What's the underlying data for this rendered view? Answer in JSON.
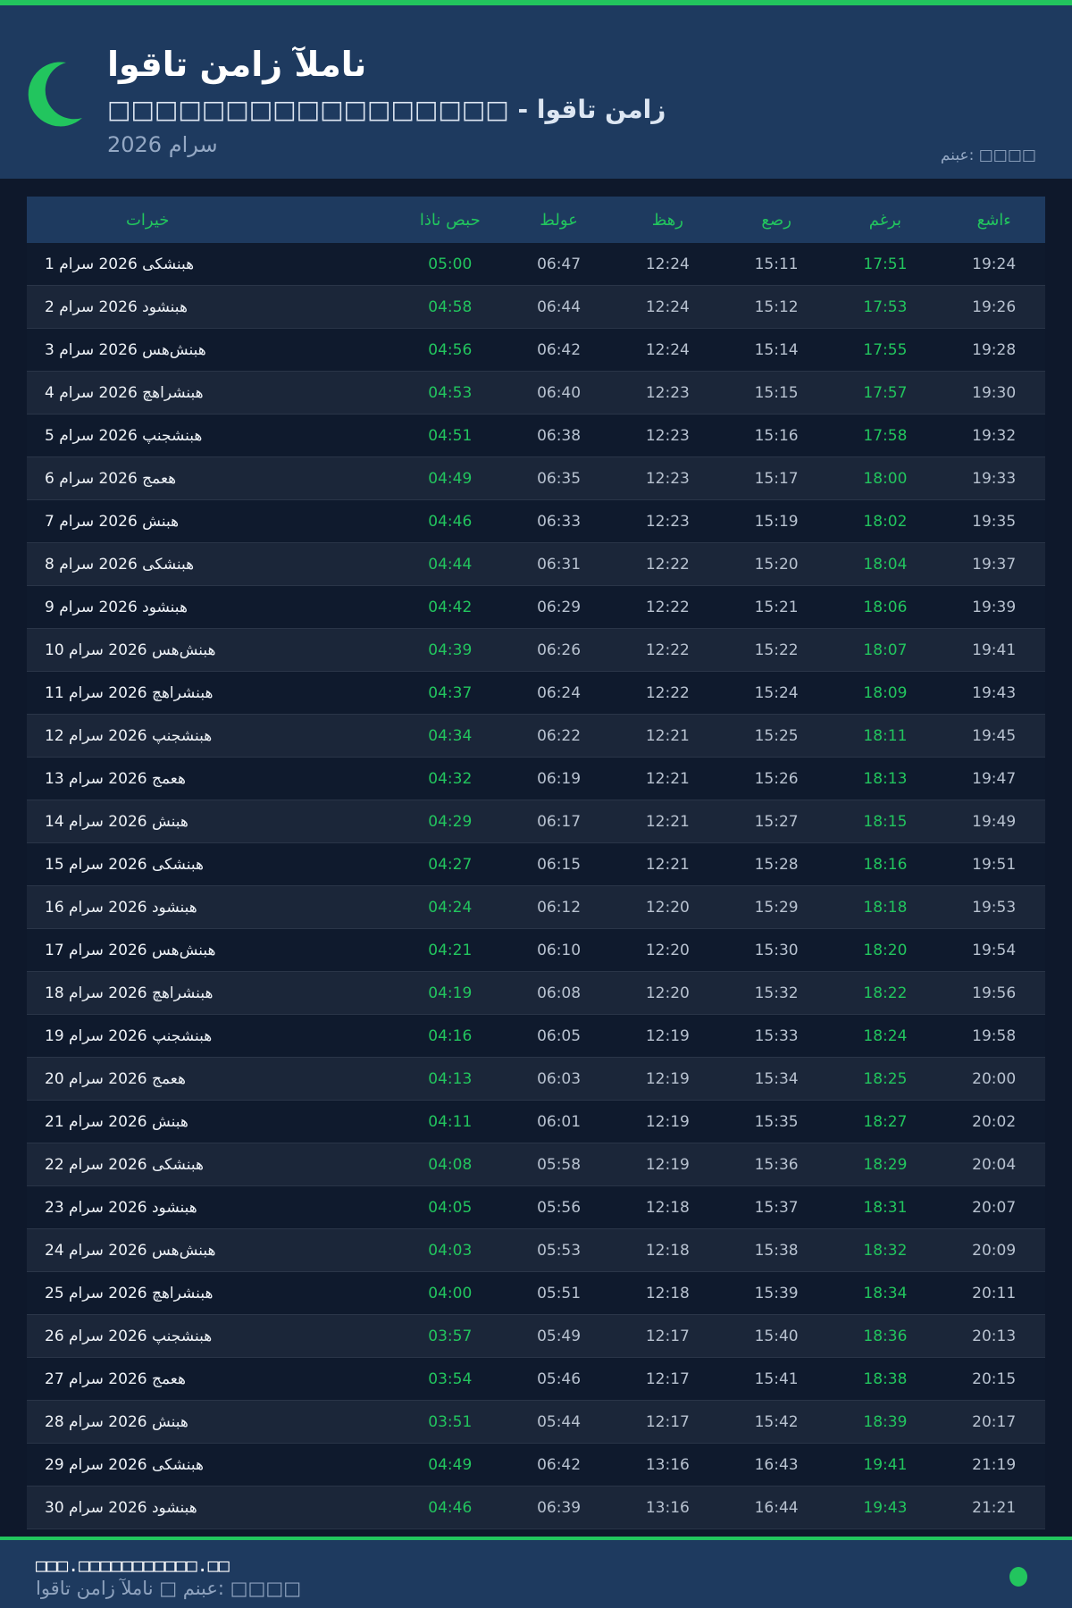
{
  "colors": {
    "accent": "#22c55e",
    "header_bg": "#1e3a5f",
    "page_bg": "#0e182b"
  },
  "header": {
    "icon": "crescent-moon-icon",
    "title": "اوقات نماز آلمان",
    "subtitle": "□□□□□□□□□□□□□□□□□ - اوقات نماز",
    "month": "2026 مارس",
    "source": "منبع: □□□□"
  },
  "table": {
    "columns": [
      "تاریخ",
      "اذان صبح",
      "طلوع",
      "ظهر",
      "عصر",
      "مغرب",
      "عشاء"
    ],
    "rows": [
      [
        "1 مارس 2026 یکشنبه",
        "05:00",
        "06:47",
        "12:24",
        "15:11",
        "17:51",
        "19:24"
      ],
      [
        "2 مارس 2026 دوشنبه",
        "04:58",
        "06:44",
        "12:24",
        "15:12",
        "17:53",
        "19:26"
      ],
      [
        "3 مارس 2026 سه‌شنبه",
        "04:56",
        "06:42",
        "12:24",
        "15:14",
        "17:55",
        "19:28"
      ],
      [
        "4 مارس 2026 چهارشنبه",
        "04:53",
        "06:40",
        "12:23",
        "15:15",
        "17:57",
        "19:30"
      ],
      [
        "5 مارس 2026 پنجشنبه",
        "04:51",
        "06:38",
        "12:23",
        "15:16",
        "17:58",
        "19:32"
      ],
      [
        "6 مارس 2026 جمعه",
        "04:49",
        "06:35",
        "12:23",
        "15:17",
        "18:00",
        "19:33"
      ],
      [
        "7 مارس 2026 شنبه",
        "04:46",
        "06:33",
        "12:23",
        "15:19",
        "18:02",
        "19:35"
      ],
      [
        "8 مارس 2026 یکشنبه",
        "04:44",
        "06:31",
        "12:22",
        "15:20",
        "18:04",
        "19:37"
      ],
      [
        "9 مارس 2026 دوشنبه",
        "04:42",
        "06:29",
        "12:22",
        "15:21",
        "18:06",
        "19:39"
      ],
      [
        "10 مارس 2026 سه‌شنبه",
        "04:39",
        "06:26",
        "12:22",
        "15:22",
        "18:07",
        "19:41"
      ],
      [
        "11 مارس 2026 چهارشنبه",
        "04:37",
        "06:24",
        "12:22",
        "15:24",
        "18:09",
        "19:43"
      ],
      [
        "12 مارس 2026 پنجشنبه",
        "04:34",
        "06:22",
        "12:21",
        "15:25",
        "18:11",
        "19:45"
      ],
      [
        "13 مارس 2026 جمعه",
        "04:32",
        "06:19",
        "12:21",
        "15:26",
        "18:13",
        "19:47"
      ],
      [
        "14 مارس 2026 شنبه",
        "04:29",
        "06:17",
        "12:21",
        "15:27",
        "18:15",
        "19:49"
      ],
      [
        "15 مارس 2026 یکشنبه",
        "04:27",
        "06:15",
        "12:21",
        "15:28",
        "18:16",
        "19:51"
      ],
      [
        "16 مارس 2026 دوشنبه",
        "04:24",
        "06:12",
        "12:20",
        "15:29",
        "18:18",
        "19:53"
      ],
      [
        "17 مارس 2026 سه‌شنبه",
        "04:21",
        "06:10",
        "12:20",
        "15:30",
        "18:20",
        "19:54"
      ],
      [
        "18 مارس 2026 چهارشنبه",
        "04:19",
        "06:08",
        "12:20",
        "15:32",
        "18:22",
        "19:56"
      ],
      [
        "19 مارس 2026 پنجشنبه",
        "04:16",
        "06:05",
        "12:19",
        "15:33",
        "18:24",
        "19:58"
      ],
      [
        "20 مارس 2026 جمعه",
        "04:13",
        "06:03",
        "12:19",
        "15:34",
        "18:25",
        "20:00"
      ],
      [
        "21 مارس 2026 شنبه",
        "04:11",
        "06:01",
        "12:19",
        "15:35",
        "18:27",
        "20:02"
      ],
      [
        "22 مارس 2026 یکشنبه",
        "04:08",
        "05:58",
        "12:19",
        "15:36",
        "18:29",
        "20:04"
      ],
      [
        "23 مارس 2026 دوشنبه",
        "04:05",
        "05:56",
        "12:18",
        "15:37",
        "18:31",
        "20:07"
      ],
      [
        "24 مارس 2026 سه‌شنبه",
        "04:03",
        "05:53",
        "12:18",
        "15:38",
        "18:32",
        "20:09"
      ],
      [
        "25 مارس 2026 چهارشنبه",
        "04:00",
        "05:51",
        "12:18",
        "15:39",
        "18:34",
        "20:11"
      ],
      [
        "26 مارس 2026 پنجشنبه",
        "03:57",
        "05:49",
        "12:17",
        "15:40",
        "18:36",
        "20:13"
      ],
      [
        "27 مارس 2026 جمعه",
        "03:54",
        "05:46",
        "12:17",
        "15:41",
        "18:38",
        "20:15"
      ],
      [
        "28 مارس 2026 شنبه",
        "03:51",
        "05:44",
        "12:17",
        "15:42",
        "18:39",
        "20:17"
      ],
      [
        "29 مارس 2026 یکشنبه",
        "04:49",
        "06:42",
        "13:16",
        "16:43",
        "19:41",
        "21:19"
      ],
      [
        "30 مارس 2026 دوشنبه",
        "04:46",
        "06:39",
        "13:16",
        "16:44",
        "19:43",
        "21:21"
      ]
    ]
  },
  "footer": {
    "site": "□□□.□□□□□□□□□□□.□□",
    "text": "اوقات نماز آلمان □ منبع: □□□□",
    "status_icon": "status-dot-icon"
  }
}
